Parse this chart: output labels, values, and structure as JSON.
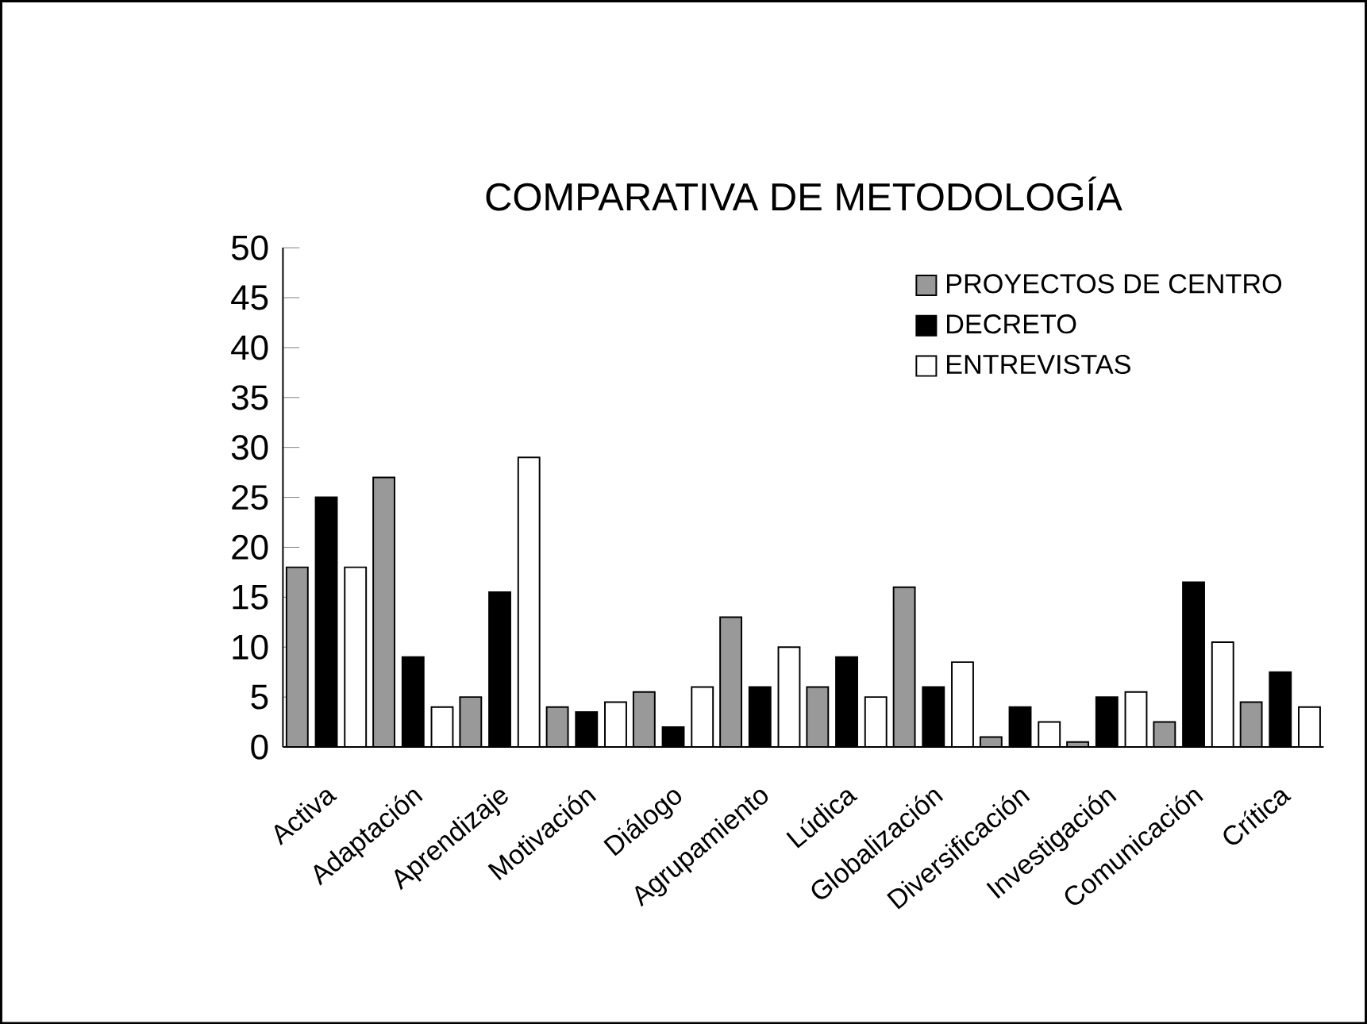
{
  "chart_data": {
    "type": "bar",
    "title": "COMPARATIVA DE METODOLOGÍA",
    "categories": [
      "Activa",
      "Adaptación",
      "Aprendizaje",
      "Motivación",
      "Diálogo",
      "Agrupamiento",
      "Lúdica",
      "Globalización",
      "Diversificación",
      "Investigación",
      "Comunicación",
      "Crítica"
    ],
    "series": [
      {
        "name": "PROYECTOS DE CENTRO",
        "color": "#999999",
        "values": [
          18,
          27,
          5,
          4,
          5.5,
          13,
          6,
          16,
          1,
          0.5,
          2.5,
          4.5
        ]
      },
      {
        "name": "DECRETO",
        "color": "#000000",
        "values": [
          25,
          9,
          15.5,
          3.5,
          2,
          6,
          9,
          6,
          4,
          5,
          16.5,
          7.5
        ]
      },
      {
        "name": "ENTREVISTAS",
        "color": "#ffffff",
        "values": [
          18,
          4,
          29,
          4.5,
          6,
          10,
          5,
          8.5,
          2.5,
          5.5,
          10.5,
          4
        ]
      }
    ],
    "ylim": [
      0,
      50
    ],
    "yticks": [
      0,
      5,
      10,
      15,
      20,
      25,
      30,
      35,
      40,
      45,
      50
    ],
    "legend": "top right"
  }
}
